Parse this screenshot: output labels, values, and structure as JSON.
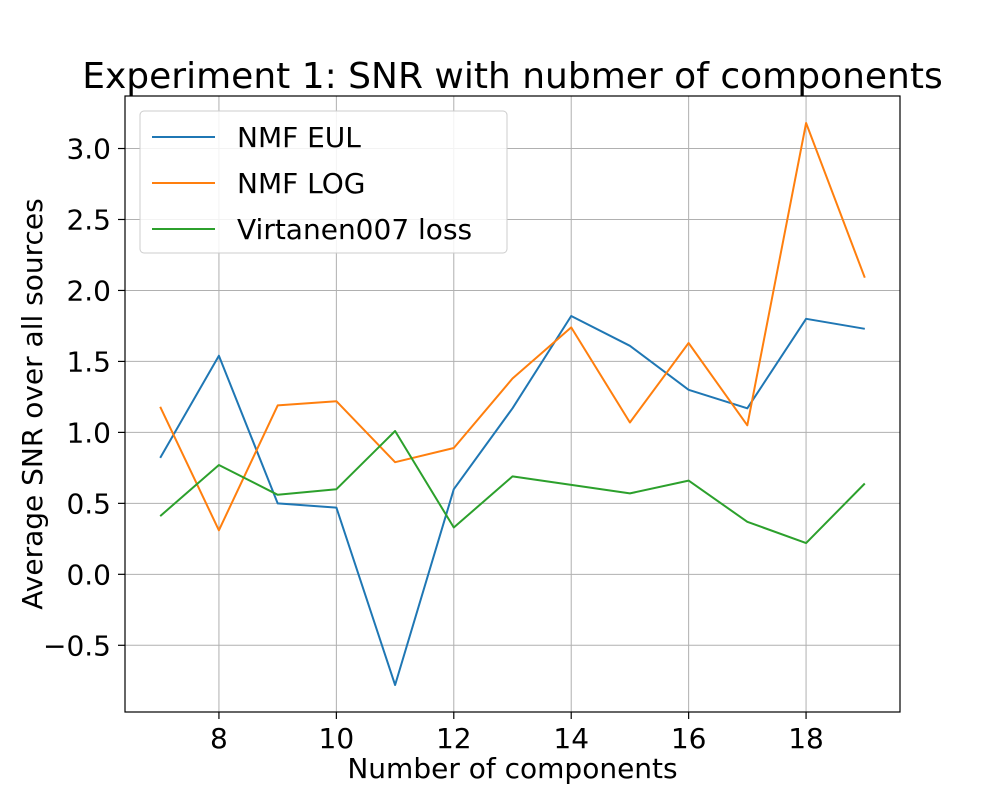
{
  "chart_data": {
    "type": "line",
    "title": "Experiment 1: SNR with nubmer of components",
    "xlabel": "Number of components",
    "ylabel": "Average SNR over all sources",
    "x": [
      7,
      8,
      9,
      10,
      11,
      12,
      13,
      14,
      15,
      16,
      17,
      18,
      19
    ],
    "xlim": [
      6.4,
      19.6
    ],
    "ylim": [
      -0.97,
      3.37
    ],
    "xticks": [
      8,
      10,
      12,
      14,
      16,
      18
    ],
    "yticks": [
      -0.5,
      0.0,
      0.5,
      1.0,
      1.5,
      2.0,
      2.5,
      3.0
    ],
    "ytick_labels": [
      "−0.5",
      "0.0",
      "0.5",
      "1.0",
      "1.5",
      "2.0",
      "2.5",
      "3.0"
    ],
    "grid": true,
    "legend_position": "top-left",
    "series": [
      {
        "name": "NMF EUL",
        "color": "#1f77b4",
        "values": [
          0.82,
          1.54,
          0.5,
          0.47,
          -0.78,
          0.6,
          1.17,
          1.82,
          1.61,
          1.3,
          1.17,
          1.8,
          1.73
        ]
      },
      {
        "name": "NMF LOG",
        "color": "#ff7f0e",
        "values": [
          1.18,
          0.31,
          1.19,
          1.22,
          0.79,
          0.89,
          1.38,
          1.74,
          1.07,
          1.63,
          1.05,
          3.18,
          2.09
        ]
      },
      {
        "name": "Virtanen007 loss",
        "color": "#2ca02c",
        "values": [
          0.41,
          0.77,
          0.56,
          0.6,
          1.01,
          0.33,
          0.69,
          0.63,
          0.57,
          0.66,
          0.37,
          0.22,
          0.64
        ]
      }
    ]
  }
}
